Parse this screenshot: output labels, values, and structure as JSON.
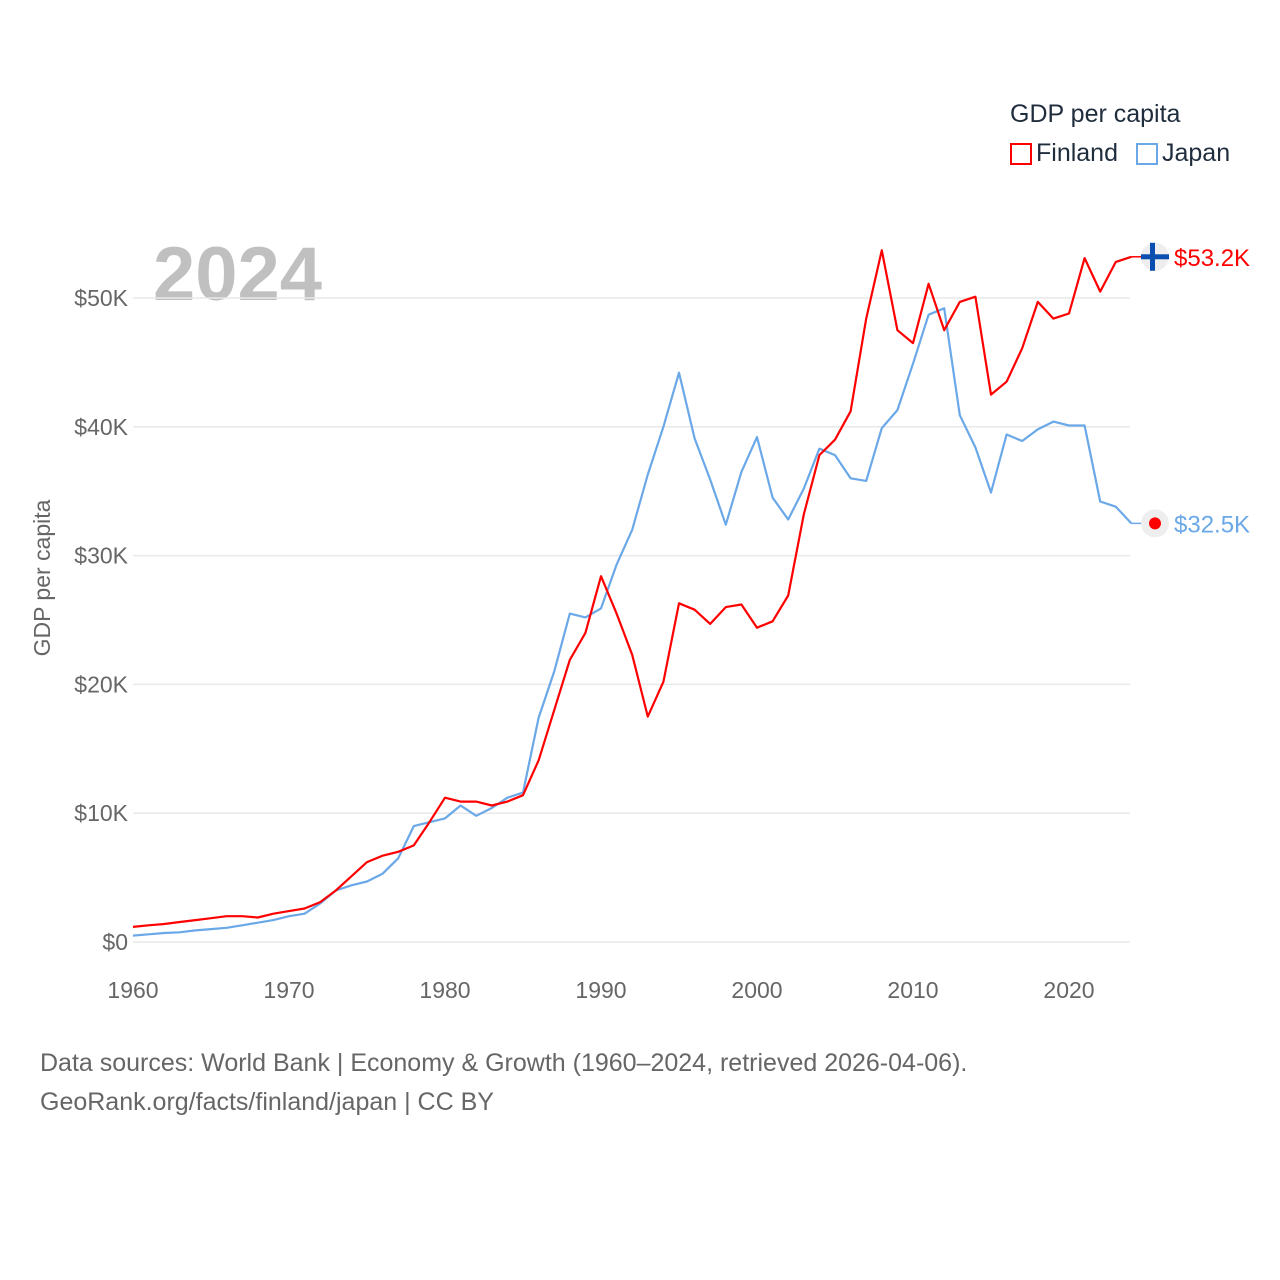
{
  "chart_data": {
    "type": "line",
    "title": "GDP per capita",
    "year_label": "2024",
    "ylabel": "GDP per capita",
    "xlabel": "",
    "xlim": [
      1960,
      2024
    ],
    "ylim": [
      0,
      55000
    ],
    "x_ticks": [
      1960,
      1970,
      1980,
      1990,
      2000,
      2010,
      2020
    ],
    "y_ticks": [
      0,
      10000,
      20000,
      30000,
      40000,
      50000
    ],
    "y_tick_labels": [
      "$0",
      "$10K",
      "$20K",
      "$30K",
      "$40K",
      "$50K"
    ],
    "grid": true,
    "legend_position": "top-right",
    "series": [
      {
        "name": "Finland",
        "color": "#ff0000",
        "end_label": "$53.2K",
        "icon": "finland-flag-icon",
        "values": [
          1170,
          1300,
          1400,
          1550,
          1700,
          1850,
          2000,
          2000,
          1900,
          2200,
          2400,
          2600,
          3100,
          4000,
          5100,
          6200,
          6700,
          7000,
          7500,
          9300,
          11200,
          10900,
          10900,
          10600,
          10900,
          11400,
          14100,
          18000,
          21900,
          24000,
          28400,
          25500,
          22300,
          17500,
          20200,
          26300,
          25800,
          24700,
          26000,
          26200,
          24400,
          24900,
          26900,
          33200,
          37800,
          39000,
          41200,
          48400,
          53700,
          47500,
          46500,
          51100,
          47500,
          49700,
          50100,
          42500,
          43500,
          46100,
          49700,
          48400,
          48800,
          53100,
          50500,
          52800,
          53200
        ]
      },
      {
        "name": "Japan",
        "color": "#6aa8e8",
        "end_label": "$32.5K",
        "icon": "japan-flag-icon",
        "values": [
          500,
          600,
          700,
          750,
          900,
          1000,
          1100,
          1300,
          1500,
          1700,
          2000,
          2200,
          3000,
          4000,
          4400,
          4700,
          5300,
          6500,
          9000,
          9300,
          9600,
          10600,
          9800,
          10400,
          11200,
          11600,
          17400,
          21000,
          25500,
          25200,
          25900,
          29300,
          32000,
          36300,
          40000,
          44200,
          39100,
          35900,
          32400,
          36500,
          39200,
          34500,
          32800,
          35200,
          38300,
          37800,
          36000,
          35800,
          39900,
          41300,
          44900,
          48700,
          49200,
          40900,
          38400,
          34900,
          39400,
          38900,
          39800,
          40400,
          40100,
          40100,
          34200,
          33800,
          32500
        ]
      }
    ]
  },
  "footer": {
    "line1": "Data sources: World Bank | Economy & Growth (1960–2024, retrieved 2026-04-06).",
    "line2": "GeoRank.org/facts/finland/japan | CC BY"
  }
}
